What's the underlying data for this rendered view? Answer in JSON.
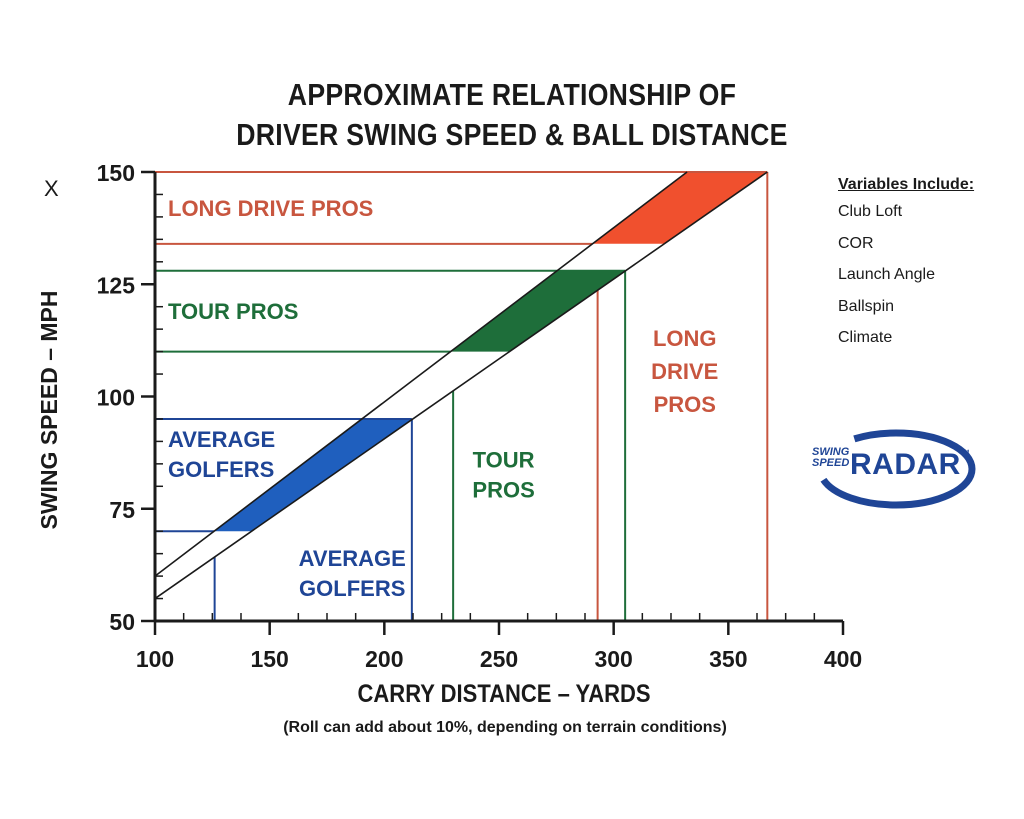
{
  "page": {
    "title_line1": "APPROXIMATE RELATIONSHIP OF",
    "title_line2": "DRIVER SWING SPEED & BALL DISTANCE",
    "corner_mark": "X",
    "variables_heading": "Variables Include:",
    "variables": [
      "Club Loft",
      "COR",
      "Launch Angle",
      "Ballspin",
      "Climate"
    ],
    "logo_small": "SWING SPEED",
    "logo_big": "RADAR",
    "logo_tm": "™"
  },
  "chart_data": {
    "type": "line",
    "title": "APPROXIMATE RELATIONSHIP OF DRIVER SWING SPEED & BALL DISTANCE",
    "xlabel": "CARRY DISTANCE – YARDS",
    "ylabel": "SWING SPEED – MPH",
    "note": "(Roll can add about 10%, depending on terrain conditions)",
    "xlim": [
      100,
      400
    ],
    "ylim": [
      50,
      150
    ],
    "xticks": [
      100,
      150,
      200,
      250,
      300,
      350,
      400
    ],
    "yticks": [
      50,
      75,
      100,
      125,
      150
    ],
    "grid": false,
    "series": [
      {
        "x": [
          100,
          332
        ],
        "y": [
          60,
          150
        ]
      },
      {
        "x": [
          100,
          367
        ],
        "y": [
          55,
          150
        ]
      }
    ],
    "bands": [
      {
        "label": "LONG DRIVE PROS",
        "label_lines": [
          "LONG",
          "DRIVE",
          "PROS"
        ],
        "color": "#f0502e",
        "line_color": "#c8563f",
        "speed_range": [
          134,
          150
        ],
        "distance_range": [
          293,
          367
        ]
      },
      {
        "label": "TOUR PROS",
        "label_lines": [
          "TOUR",
          "PROS"
        ],
        "color": "#1e6e3a",
        "line_color": "#1e6e3a",
        "speed_range": [
          110,
          128
        ],
        "distance_range": [
          230,
          305
        ]
      },
      {
        "label": "AVERAGE GOLFERS",
        "label_lines": [
          "AVERAGE",
          "GOLFERS"
        ],
        "color": "#1f5fbe",
        "line_color": "#1f4596",
        "speed_range": [
          70,
          95
        ],
        "distance_range": [
          126,
          212
        ]
      }
    ]
  }
}
